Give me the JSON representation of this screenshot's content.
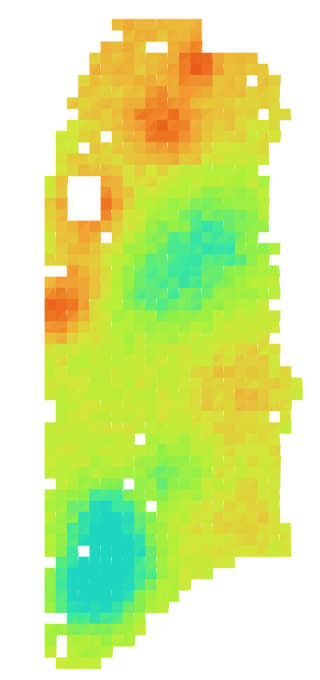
{
  "scene": {
    "background": "#ffffff",
    "kind": "colormapped-surface-patch",
    "colormap": {
      "name": "jet-like",
      "stops": [
        "#1fd6c0",
        "#3ee89a",
        "#8cef4a",
        "#b4ef3a",
        "#d4e63a",
        "#e8c23a",
        "#f0a233",
        "#ee7422",
        "#e85a1a"
      ],
      "dominant": "#b4ef3a",
      "hot": "#ee7422",
      "cool": "#1fd6c0"
    }
  }
}
